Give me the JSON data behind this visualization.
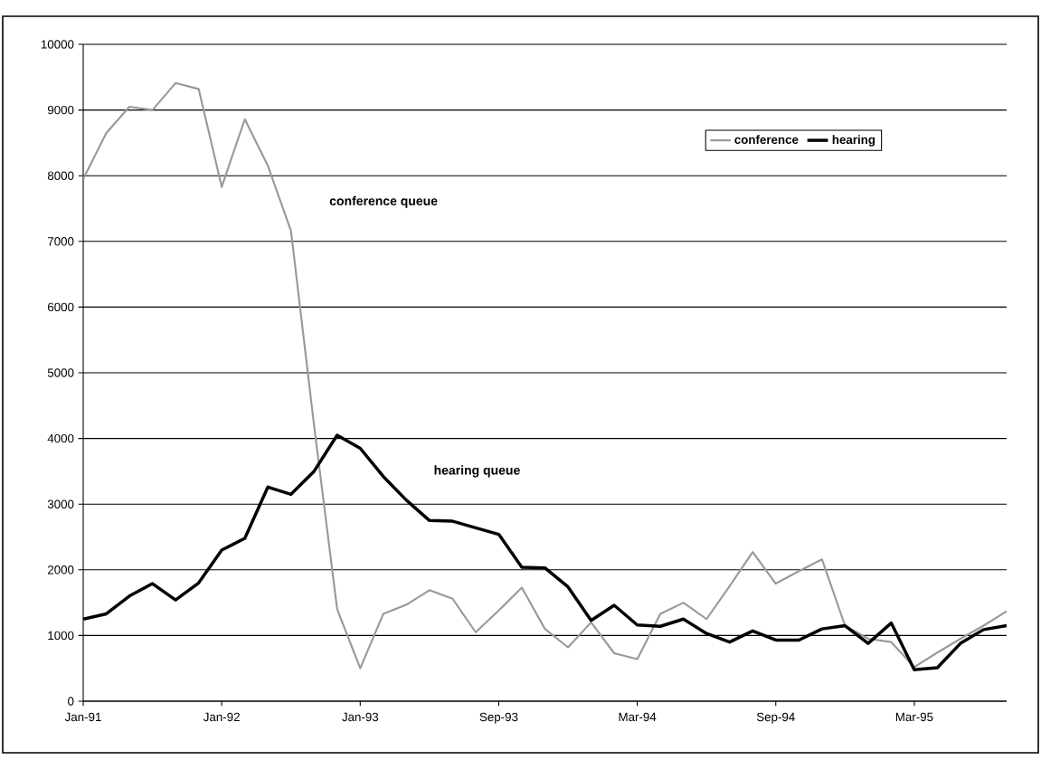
{
  "chart_data": {
    "type": "line",
    "categories": [
      "Jan-91",
      null,
      null,
      null,
      null,
      null,
      "Jan-92",
      null,
      null,
      null,
      null,
      null,
      "Jan-93",
      null,
      null,
      null,
      null,
      null,
      "Sep-93",
      null,
      null,
      null,
      null,
      null,
      "Mar-94",
      null,
      null,
      null,
      null,
      null,
      "Sep-94",
      null,
      null,
      null,
      null,
      null,
      "Mar-95",
      null,
      null,
      null,
      null
    ],
    "series": [
      {
        "name": "conference",
        "color": "#999999",
        "values": [
          7950,
          8650,
          9050,
          9000,
          9410,
          9320,
          7830,
          8860,
          8150,
          7160,
          4200,
          1400,
          500,
          1330,
          1470,
          1690,
          1560,
          1050,
          1380,
          1730,
          1100,
          820,
          1200,
          730,
          640,
          1330,
          1500,
          1250,
          1750,
          2270,
          1790,
          1980,
          2160,
          1150,
          950,
          900,
          520,
          740,
          950,
          1150,
          1370
        ]
      },
      {
        "name": "hearing",
        "color": "#000000",
        "values": [
          1250,
          1330,
          1600,
          1790,
          1540,
          1800,
          2300,
          2480,
          3260,
          3150,
          3500,
          4050,
          3850,
          3420,
          3060,
          2750,
          2740,
          2640,
          2540,
          2040,
          2030,
          1740,
          1230,
          1460,
          1160,
          1140,
          1250,
          1030,
          900,
          1070,
          930,
          930,
          1100,
          1150,
          880,
          1190,
          480,
          510,
          880,
          1090,
          1150
        ]
      }
    ],
    "ylim": [
      0,
      10000
    ],
    "yticks": [
      0,
      1000,
      2000,
      3000,
      4000,
      5000,
      6000,
      7000,
      8000,
      9000,
      10000
    ],
    "grid": "y",
    "legend": "top right",
    "marker": "none",
    "line_style": "solid",
    "annotations": [
      "conference queue",
      "hearing queue"
    ]
  }
}
